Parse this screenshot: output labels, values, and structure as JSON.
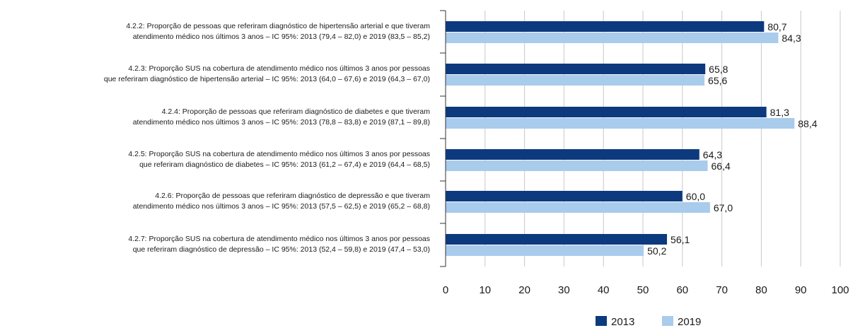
{
  "chart_data": {
    "type": "bar",
    "orientation": "horizontal",
    "categories": [
      [
        "4.2.2: Proporção de pessoas que referiram diagnóstico de hipertensão arterial e que tiveram",
        "atendimento médico nos últimos 3 anos – IC 95%: 2013 (79,4 – 82,0) e 2019 (83,5 – 85,2)"
      ],
      [
        "4.2.3: Proporção SUS na cobertura de atendimento médico nos últimos 3 anos por pessoas",
        "que referiram diagnóstico de hipertensão arterial – IC 95%: 2013 (64,0 – 67,6) e 2019 (64,3 – 67,0)"
      ],
      [
        "4.2.4: Proporção de pessoas que referiram diagnóstico de diabetes e que tiveram",
        "atendimento médico nos últimos 3 anos – IC 95%: 2013 (78,8 – 83,8) e 2019 (87,1 – 89,8)"
      ],
      [
        "4.2.5: Proporção SUS na cobertura de atendimento médico nos últimos 3 anos por pessoas",
        "que referiram diagnóstico de diabetes – IC 95%: 2013 (61,2 – 67,4) e 2019 (64,4 – 68,5)"
      ],
      [
        "4.2.6: Proporção de pessoas que referiram diagnóstico de depressão e que tiveram",
        "atendimento médico nos últimos 3 anos – IC 95%: 2013 (57,5 – 62,5) e 2019 (65,2 – 68,8)"
      ],
      [
        "4.2.7: Proporção SUS na cobertura de atendimento médico nos últimos 3 anos por pessoas",
        "que referiram diagnóstico de depressão – IC 95%: 2013 (52,4 – 59,8) e 2019 (47,4 – 53,0)"
      ]
    ],
    "series": [
      {
        "name": "2013",
        "color": "#0d3a7e",
        "values": [
          80.7,
          65.8,
          81.3,
          64.3,
          60.0,
          56.1
        ],
        "labels": [
          "80,7",
          "65,8",
          "81,3",
          "64,3",
          "60,0",
          "56,1"
        ]
      },
      {
        "name": "2019",
        "color": "#a9cbec",
        "values": [
          84.3,
          65.6,
          88.4,
          66.4,
          67.0,
          50.2
        ],
        "labels": [
          "84,3",
          "65,6",
          "88,4",
          "66,4",
          "67,0",
          "50,2"
        ]
      }
    ],
    "xlim": [
      0,
      100
    ],
    "xticks": [
      0,
      10,
      20,
      30,
      40,
      50,
      60,
      70,
      80,
      90,
      100
    ],
    "xtick_labels": [
      "0",
      "10",
      "20",
      "30",
      "40",
      "50",
      "60",
      "70",
      "80",
      "90",
      "100"
    ],
    "grid": "vertical",
    "gridline_color": "#c8c8c8",
    "legend_position": "bottom-right"
  }
}
